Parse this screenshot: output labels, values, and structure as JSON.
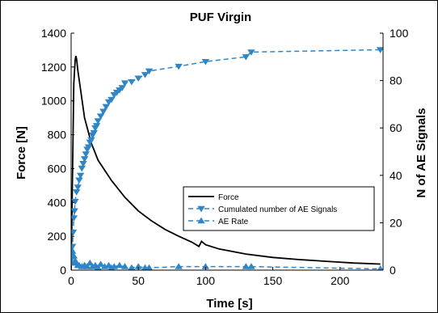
{
  "chart_data": {
    "type": "line",
    "title": "PUF Virgin",
    "xlabel": "Time [s]",
    "ylabel": "Force [N]",
    "y2label": "N of AE Signals",
    "xlim": [
      0,
      232
    ],
    "ylim": [
      0,
      1400
    ],
    "y2lim": [
      0,
      100
    ],
    "xticks": [
      0,
      50,
      100,
      150,
      200
    ],
    "yticks": [
      0,
      200,
      400,
      600,
      800,
      1000,
      1200,
      1400
    ],
    "y2ticks": [
      0,
      20,
      40,
      60,
      80,
      100
    ],
    "grid": false,
    "legend_position": "lower-right",
    "series": [
      {
        "name": "Force",
        "axis": "left",
        "color": "#000000",
        "style": "solid",
        "marker": "none",
        "x": [
          0,
          1,
          2,
          3,
          3.5,
          4,
          5,
          7,
          10,
          15,
          20,
          30,
          40,
          50,
          60,
          70,
          80,
          90,
          95,
          97,
          100,
          110,
          130,
          150,
          170,
          190,
          210,
          230
        ],
        "y": [
          0,
          550,
          1100,
          1240,
          1265,
          1250,
          1180,
          1070,
          900,
          750,
          650,
          530,
          430,
          350,
          290,
          240,
          200,
          165,
          140,
          170,
          150,
          125,
          95,
          75,
          62,
          52,
          42,
          36
        ]
      },
      {
        "name": "Cumulated number of AE Signals",
        "axis": "right",
        "color": "#2E86C8",
        "style": "dashed",
        "marker": "triangle-down",
        "x": [
          0.5,
          1,
          1.5,
          2,
          2.5,
          3,
          4,
          5,
          6,
          7,
          8,
          9,
          10,
          11,
          12,
          13,
          14,
          15,
          16,
          17,
          18,
          19,
          20,
          22,
          24,
          26,
          28,
          30,
          32,
          34,
          36,
          38,
          40,
          45,
          50,
          55,
          58,
          80,
          100,
          130,
          134,
          230
        ],
        "y": [
          5,
          10,
          16,
          22,
          25,
          29,
          33,
          35,
          38,
          40,
          43,
          45,
          47,
          49,
          51,
          52,
          54,
          55,
          57,
          58,
          60,
          61,
          63,
          65,
          67,
          69,
          71,
          72,
          74,
          75,
          76,
          77,
          79,
          79.5,
          81,
          82.5,
          84,
          86,
          88,
          90,
          92,
          93
        ]
      },
      {
        "name": "AE Rate",
        "axis": "right",
        "color": "#2E86C8",
        "style": "dashed",
        "marker": "triangle-up",
        "x": [
          0.5,
          1,
          2,
          3,
          4,
          5,
          6,
          8,
          10,
          12,
          14,
          16,
          18,
          20,
          22,
          25,
          28,
          30,
          32,
          36,
          40,
          45,
          50,
          55,
          58,
          80,
          100,
          130,
          134,
          230
        ],
        "y": [
          3,
          8,
          6,
          4,
          3,
          2,
          2,
          1.5,
          2,
          1.5,
          3,
          1.5,
          2,
          1,
          2.5,
          1.5,
          2,
          1,
          1.5,
          2,
          1.5,
          1,
          1.5,
          1,
          1,
          1.5,
          1.5,
          1.5,
          1.5,
          0.5
        ]
      }
    ]
  }
}
